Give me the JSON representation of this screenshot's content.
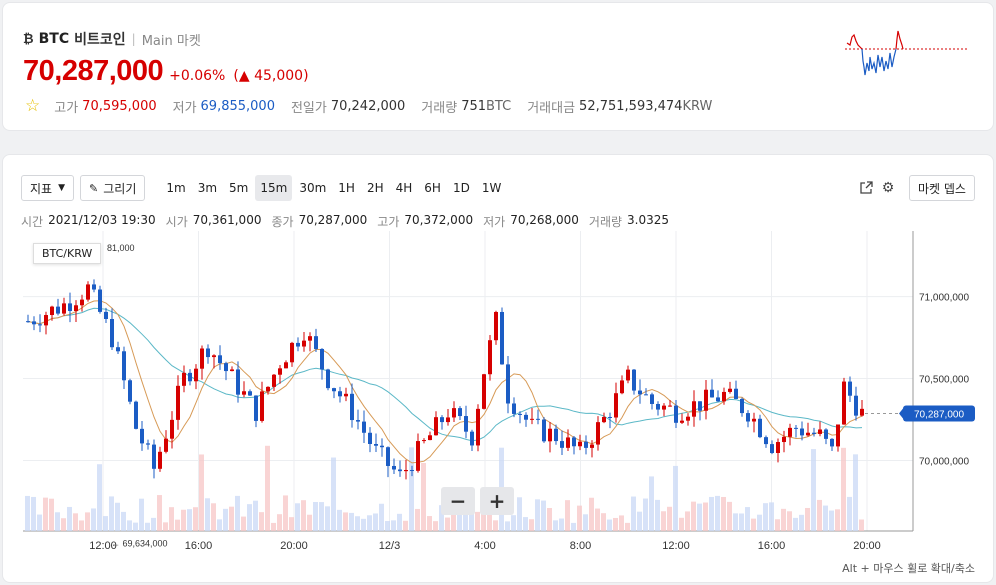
{
  "ticker": {
    "icon": "₿",
    "symbol": "BTC",
    "name": "비트코인",
    "market": "Main 마켓"
  },
  "price": {
    "current": "70,287,000",
    "change_pct": "+0.06%",
    "change_abs": "45,000",
    "change_dir": "▲"
  },
  "stats": {
    "high_label": "고가",
    "high": "70,595,000",
    "low_label": "저가",
    "low": "69,855,000",
    "prev_label": "전일가",
    "prev": "70,242,000",
    "volume_label": "거래량",
    "volume": "751",
    "volume_unit": "BTC",
    "value_label": "거래대금",
    "value": "52,751,593,474",
    "value_unit": "KRW"
  },
  "toolbar": {
    "indicator_label": "지표",
    "draw_label": "그리기",
    "intervals": [
      "1m",
      "3m",
      "5m",
      "15m",
      "30m",
      "1H",
      "2H",
      "4H",
      "6H",
      "1D",
      "1W"
    ],
    "active_interval": "15m",
    "depth_label": "마켓 뎁스"
  },
  "ohlc": {
    "time_label": "시간",
    "time": "2021/12/03 19:30",
    "open_label": "시가",
    "open": "70,361,000",
    "close_label": "종가",
    "close": "70,287,000",
    "high_label": "고가",
    "high": "70,372,000",
    "low_label": "저가",
    "low": "70,268,000",
    "vol_label": "거래량",
    "vol": "3.0325"
  },
  "chart": {
    "pair_label": "BTC/KRW",
    "partial_label": "81,000",
    "min_label": "← 69,634,000",
    "current_tag": "70,287,000",
    "hint": "Alt + 마우스 휠로 확대/축소"
  },
  "colors": {
    "up": "#d60000",
    "down": "#1b5cc4",
    "ma_short": "#d79a56",
    "ma_long": "#5bb8c7"
  },
  "chart_data": {
    "type": "candlestick",
    "y_ticks": [
      {
        "value": 71000000,
        "label": "71,000,000"
      },
      {
        "value": 70500000,
        "label": "70,500,000"
      },
      {
        "value": 70000000,
        "label": "70,000,000"
      }
    ],
    "x_ticks": [
      "12:00",
      "16:00",
      "20:00",
      "12/3",
      "4:00",
      "8:00",
      "12:00",
      "16:00",
      "20:00"
    ],
    "ylim": [
      69570000,
      71400000
    ],
    "current_price": 70287000,
    "min_marker": 69634000,
    "candle_count": 140
  }
}
